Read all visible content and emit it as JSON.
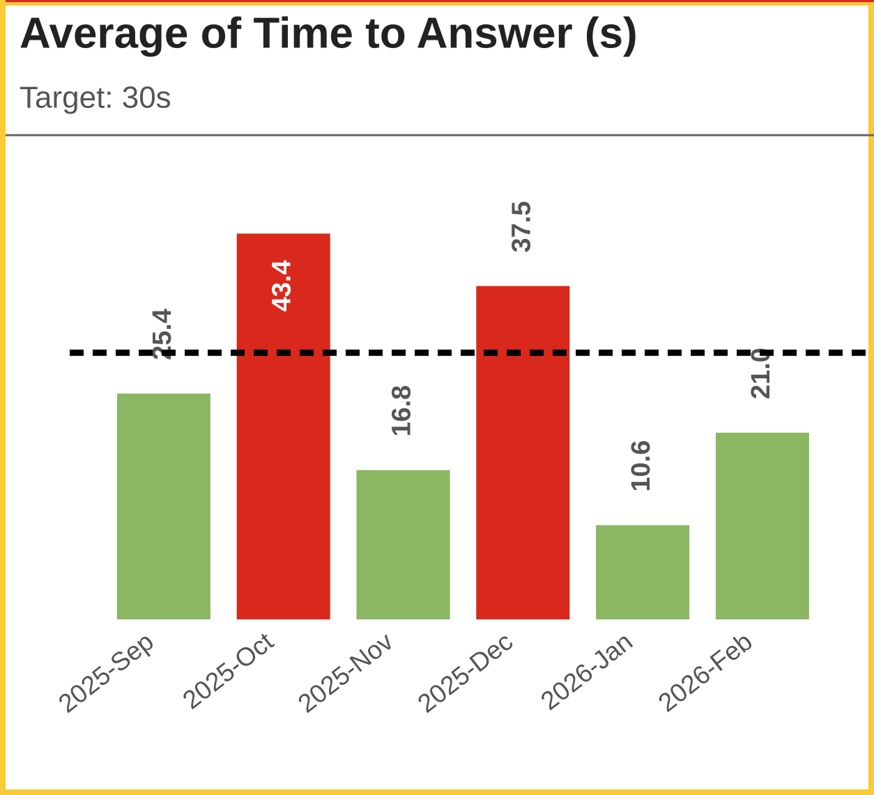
{
  "chart_data": {
    "type": "bar",
    "title": "Average of Time to Answer (s)",
    "subtitle": "Target: 30s",
    "categories": [
      "2025-Sep",
      "2025-Oct",
      "2025-Nov",
      "2025-Dec",
      "2026-Jan",
      "2026-Feb"
    ],
    "values": [
      25.4,
      43.4,
      16.8,
      37.5,
      10.6,
      21.0
    ],
    "value_labels": [
      "25.4",
      "43.4",
      "16.8",
      "37.5",
      "10.6",
      "21.0"
    ],
    "colors": [
      "#8bb662",
      "#d9291c",
      "#8bb662",
      "#d9291c",
      "#8bb662",
      "#8bb662"
    ],
    "target": 30,
    "ylim": [
      0,
      54
    ]
  }
}
